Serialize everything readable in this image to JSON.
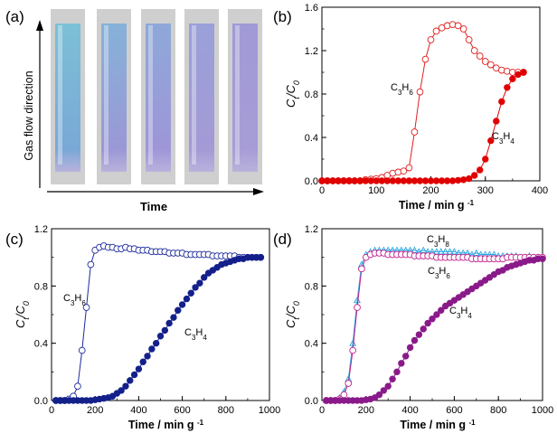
{
  "figure": {
    "panel_a": {
      "letter": "(a)",
      "ylabel": "Gas flow direction",
      "xlabel": "Time",
      "tube_count": 5,
      "colors": {
        "cyan": "#6fb6d0",
        "violet": "#9892d4",
        "glass": "#c8c8c8"
      }
    }
  },
  "chart_data": [
    {
      "panel": "(b)",
      "type": "scatter",
      "xlabel": "Time / min g",
      "xlabel_sup": "-1",
      "ylabel": "C",
      "ylabel_sub1": "t",
      "ylabel_mid": "/C",
      "ylabel_sub2": "0",
      "xlim": [
        0,
        400
      ],
      "ylim": [
        0,
        1.6
      ],
      "xticks": [
        "0",
        "100",
        "200",
        "300",
        "400"
      ],
      "yticks": [
        "0.0",
        "0.4",
        "0.8",
        "1.2",
        "1.6"
      ],
      "series": [
        {
          "name": "C3H6",
          "base": "C",
          "n1": "3",
          "mid": "H",
          "n2": "6",
          "color": "#e02020",
          "marker": "open",
          "x": [
            0,
            10,
            20,
            30,
            40,
            50,
            60,
            70,
            80,
            90,
            100,
            110,
            120,
            130,
            140,
            150,
            160,
            170,
            180,
            190,
            200,
            210,
            220,
            230,
            240,
            250,
            260,
            270,
            280,
            290,
            300,
            310,
            320,
            330,
            340,
            350,
            360,
            370
          ],
          "y": [
            0,
            0,
            0,
            0,
            0,
            0,
            0,
            0,
            0.01,
            0.015,
            0.02,
            0.03,
            0.05,
            0.07,
            0.08,
            0.09,
            0.12,
            0.45,
            0.82,
            1.12,
            1.3,
            1.38,
            1.41,
            1.43,
            1.44,
            1.43,
            1.4,
            1.3,
            1.2,
            1.15,
            1.1,
            1.07,
            1.04,
            1.02,
            1.01,
            1.0,
            1.0,
            1.0
          ]
        },
        {
          "name": "C3H4",
          "base": "C",
          "n1": "3",
          "mid": "H",
          "n2": "4",
          "color": "#e00000",
          "marker": "filled",
          "x": [
            0,
            10,
            20,
            30,
            40,
            50,
            60,
            70,
            80,
            90,
            100,
            110,
            120,
            130,
            140,
            150,
            160,
            170,
            180,
            190,
            200,
            210,
            220,
            230,
            240,
            250,
            260,
            270,
            280,
            290,
            300,
            310,
            320,
            330,
            340,
            350,
            360,
            370
          ],
          "y": [
            0,
            0,
            0,
            0,
            0,
            0,
            0,
            0,
            0,
            0,
            0,
            0,
            0,
            0,
            0,
            0,
            0,
            0,
            0,
            0,
            0,
            0,
            0,
            0,
            0,
            0.005,
            0.01,
            0.02,
            0.05,
            0.1,
            0.2,
            0.37,
            0.55,
            0.73,
            0.86,
            0.94,
            0.98,
            1.0
          ]
        }
      ]
    },
    {
      "panel": "(c)",
      "type": "scatter",
      "xlabel": "Time / min g",
      "xlabel_sup": "-1",
      "ylabel": "C",
      "ylabel_sub1": "t",
      "ylabel_mid": "/C",
      "ylabel_sub2": "0",
      "xlim": [
        0,
        1000
      ],
      "ylim": [
        0,
        1.2
      ],
      "xticks": [
        "0",
        "200",
        "400",
        "600",
        "800",
        "1000"
      ],
      "yticks": [
        "0.0",
        "0.4",
        "0.8",
        "1.2"
      ],
      "series": [
        {
          "name": "C3H6",
          "base": "C",
          "n1": "3",
          "mid": "H",
          "n2": "6",
          "color": "#1c2a9c",
          "marker": "open",
          "x": [
            20,
            40,
            60,
            80,
            100,
            120,
            140,
            160,
            180,
            200,
            220,
            240,
            260,
            280,
            300,
            320,
            340,
            360,
            380,
            400,
            420,
            440,
            460,
            480,
            500,
            520,
            540,
            560,
            580,
            600,
            620,
            640,
            660,
            680,
            700,
            720,
            740,
            760,
            780,
            800,
            820,
            840,
            860,
            880,
            900,
            920,
            940,
            960
          ],
          "y": [
            0,
            0,
            0,
            0.01,
            0.03,
            0.1,
            0.35,
            0.65,
            0.95,
            1.05,
            1.07,
            1.08,
            1.07,
            1.07,
            1.06,
            1.06,
            1.07,
            1.06,
            1.06,
            1.05,
            1.05,
            1.05,
            1.04,
            1.04,
            1.04,
            1.04,
            1.03,
            1.03,
            1.03,
            1.03,
            1.02,
            1.02,
            1.02,
            1.02,
            1.02,
            1.02,
            1.01,
            1.01,
            1.01,
            1.01,
            1.01,
            1.01,
            1.0,
            1.0,
            1.0,
            1.0,
            1.0,
            1.0
          ]
        },
        {
          "name": "C3H4",
          "base": "C",
          "n1": "3",
          "mid": "H",
          "n2": "4",
          "color": "#14208a",
          "marker": "filled",
          "x": [
            20,
            40,
            60,
            80,
            100,
            120,
            140,
            160,
            180,
            200,
            220,
            240,
            260,
            280,
            300,
            320,
            340,
            360,
            380,
            400,
            420,
            440,
            460,
            480,
            500,
            520,
            540,
            560,
            580,
            600,
            620,
            640,
            660,
            680,
            700,
            720,
            740,
            760,
            780,
            800,
            820,
            840,
            860,
            880,
            900,
            920,
            940,
            960
          ],
          "y": [
            0,
            0,
            0,
            0,
            0,
            0,
            0,
            0,
            0,
            0.005,
            0.01,
            0.015,
            0.02,
            0.03,
            0.05,
            0.07,
            0.1,
            0.14,
            0.18,
            0.22,
            0.27,
            0.31,
            0.36,
            0.4,
            0.45,
            0.49,
            0.54,
            0.58,
            0.63,
            0.67,
            0.71,
            0.75,
            0.79,
            0.82,
            0.86,
            0.89,
            0.91,
            0.93,
            0.95,
            0.96,
            0.97,
            0.98,
            0.99,
            0.99,
            1.0,
            1.0,
            1.0,
            1.0
          ]
        }
      ]
    },
    {
      "panel": "(d)",
      "type": "scatter",
      "xlabel": "Time / min g",
      "xlabel_sup": "-1",
      "ylabel": "C",
      "ylabel_sub1": "t",
      "ylabel_mid": "/C",
      "ylabel_sub2": "0",
      "xlim": [
        0,
        1000
      ],
      "ylim": [
        0,
        1.2
      ],
      "xticks": [
        "0",
        "200",
        "400",
        "600",
        "800",
        "1000"
      ],
      "yticks": [
        "0.0",
        "0.4",
        "0.8",
        "1.2"
      ],
      "series": [
        {
          "name": "C3H8",
          "base": "C",
          "n1": "3",
          "mid": "H",
          "n2": "8",
          "color": "#2aa6e0",
          "marker": "triangle",
          "x": [
            20,
            40,
            60,
            80,
            100,
            120,
            140,
            160,
            180,
            200,
            220,
            240,
            260,
            280,
            300,
            320,
            340,
            360,
            380,
            400,
            420,
            440,
            460,
            480,
            500,
            520,
            540,
            560,
            580,
            600,
            620,
            640,
            660,
            680,
            700,
            720,
            740,
            760,
            780,
            800,
            820,
            840,
            860,
            880,
            900,
            920,
            940,
            960,
            980,
            1000
          ],
          "y": [
            0,
            0,
            0,
            0.02,
            0.06,
            0.15,
            0.4,
            0.7,
            0.95,
            1.02,
            1.04,
            1.05,
            1.05,
            1.05,
            1.05,
            1.05,
            1.05,
            1.05,
            1.05,
            1.05,
            1.05,
            1.04,
            1.05,
            1.04,
            1.04,
            1.04,
            1.04,
            1.04,
            1.04,
            1.04,
            1.03,
            1.03,
            1.03,
            1.02,
            1.03,
            1.02,
            1.02,
            1.02,
            1.02,
            1.01,
            1.01,
            1.01,
            1.01,
            1.01,
            1.0,
            1.0,
            1.01,
            1.0,
            1.0,
            1.0
          ]
        },
        {
          "name": "C3H6",
          "base": "C",
          "n1": "3",
          "mid": "H",
          "n2": "6",
          "color": "#c0208c",
          "marker": "open",
          "x": [
            20,
            40,
            60,
            80,
            100,
            120,
            140,
            160,
            180,
            200,
            220,
            240,
            260,
            280,
            300,
            320,
            340,
            360,
            380,
            400,
            420,
            440,
            460,
            480,
            500,
            520,
            540,
            560,
            580,
            600,
            620,
            640,
            660,
            680,
            700,
            720,
            740,
            760,
            780,
            800,
            820,
            840,
            860,
            880,
            900,
            920,
            940,
            960,
            980,
            1000
          ],
          "y": [
            0,
            0,
            0,
            0.01,
            0.04,
            0.12,
            0.35,
            0.65,
            0.92,
            1.0,
            1.02,
            1.03,
            1.03,
            1.03,
            1.02,
            1.02,
            1.02,
            1.02,
            1.02,
            1.02,
            1.01,
            1.01,
            1.01,
            1.01,
            1.01,
            1.0,
            1.0,
            1.0,
            1.0,
            1.0,
            1.0,
            1.0,
            1.0,
            0.99,
            0.99,
            0.99,
            0.99,
            0.99,
            0.99,
            0.99,
            0.99,
            1.0,
            1.0,
            1.0,
            1.0,
            1.0,
            1.0,
            1.0,
            1.0,
            1.0
          ]
        },
        {
          "name": "C3H4",
          "base": "C",
          "n1": "3",
          "mid": "H",
          "n2": "4",
          "color": "#8a1a8a",
          "marker": "filled",
          "x": [
            20,
            40,
            60,
            80,
            100,
            120,
            140,
            160,
            180,
            200,
            220,
            240,
            260,
            280,
            300,
            320,
            340,
            360,
            380,
            400,
            420,
            440,
            460,
            480,
            500,
            520,
            540,
            560,
            580,
            600,
            620,
            640,
            660,
            680,
            700,
            720,
            740,
            760,
            780,
            800,
            820,
            840,
            860,
            880,
            900,
            920,
            940,
            960,
            980,
            1000
          ],
          "y": [
            0,
            0,
            0,
            0,
            0,
            0,
            0,
            0,
            0,
            0.005,
            0.01,
            0.02,
            0.04,
            0.07,
            0.1,
            0.15,
            0.2,
            0.26,
            0.31,
            0.37,
            0.42,
            0.46,
            0.5,
            0.54,
            0.57,
            0.6,
            0.63,
            0.66,
            0.68,
            0.7,
            0.72,
            0.74,
            0.76,
            0.78,
            0.8,
            0.82,
            0.84,
            0.86,
            0.88,
            0.9,
            0.91,
            0.93,
            0.94,
            0.95,
            0.96,
            0.97,
            0.98,
            0.98,
            0.99,
            0.99
          ]
        }
      ]
    }
  ]
}
